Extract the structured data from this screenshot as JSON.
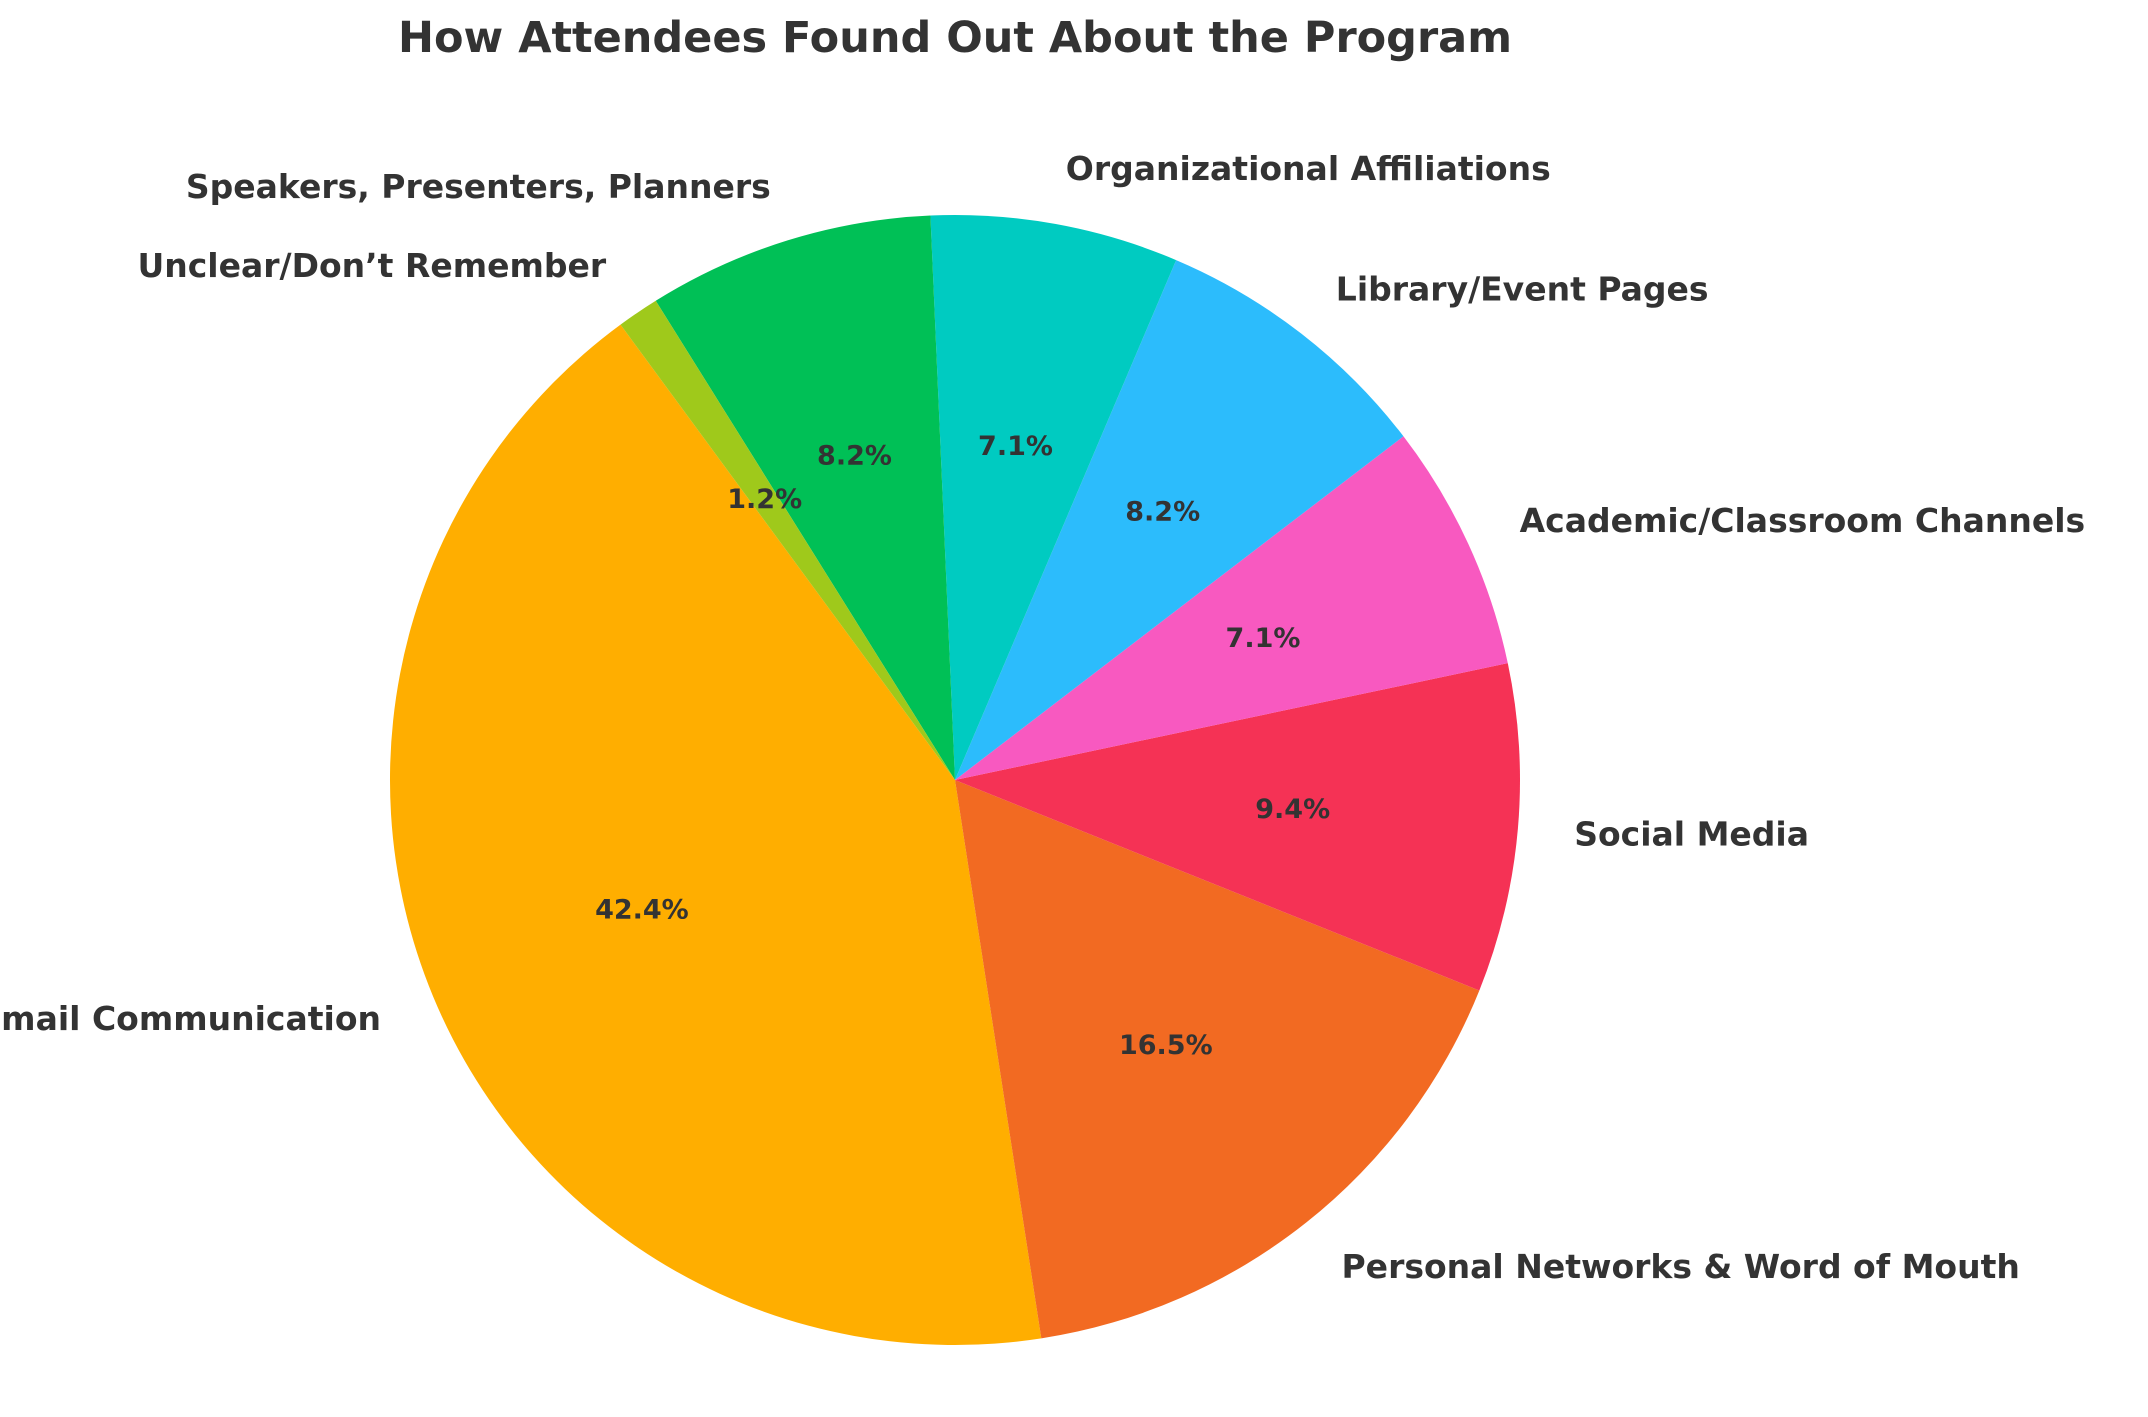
{
  "chart_data": {
    "type": "pie",
    "title": "How Attendees Found Out About the Program",
    "start_angle_deg": 126.3,
    "direction": "counterclockwise",
    "slices": [
      {
        "label": "Email Communication",
        "value": 42.4,
        "pct_label": "42.4%",
        "color": "#FFAE00"
      },
      {
        "label": "Personal Networks & Word of Mouth",
        "value": 16.5,
        "pct_label": "16.5%",
        "color": "#F26A22"
      },
      {
        "label": "Social Media",
        "value": 9.4,
        "pct_label": "9.4%",
        "color": "#F53255"
      },
      {
        "label": "Academic/Classroom Channels",
        "value": 7.1,
        "pct_label": "7.1%",
        "color": "#F859C0"
      },
      {
        "label": "Library/Event Pages",
        "value": 8.2,
        "pct_label": "8.2%",
        "color": "#2CBCFC"
      },
      {
        "label": "Organizational Affiliations",
        "value": 7.1,
        "pct_label": "7.1%",
        "color": "#00CBC1"
      },
      {
        "label": "Speakers, Presenters, Planners",
        "value": 8.2,
        "pct_label": "8.2%",
        "color": "#00C056"
      },
      {
        "label": "Unclear/Don’t Remember",
        "value": 1.2,
        "pct_label": "1.2%",
        "color": "#9FC91B"
      }
    ]
  }
}
